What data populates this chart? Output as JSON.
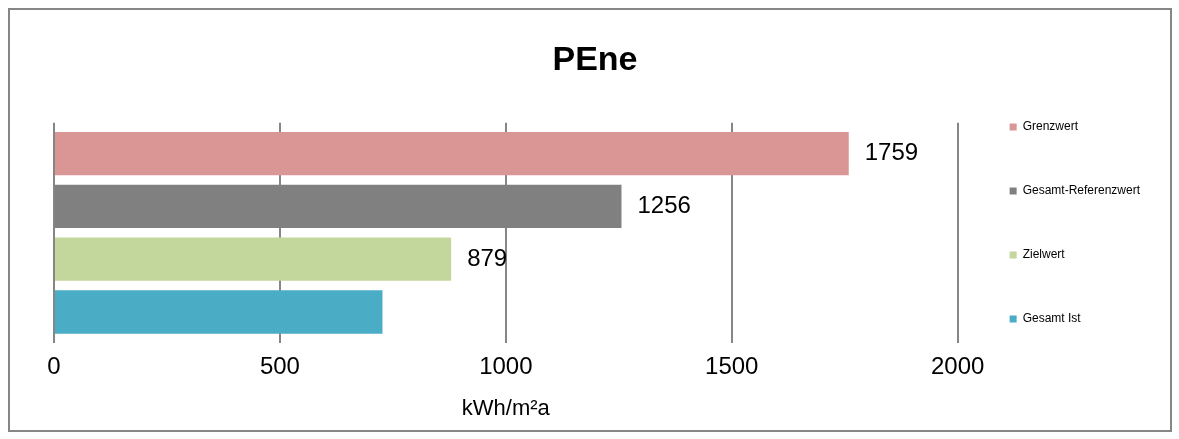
{
  "chart_data": {
    "type": "bar",
    "orientation": "horizontal",
    "title": "PEne",
    "xlabel": "kWh/m²a",
    "categories": [
      null
    ],
    "series": [
      {
        "name": "Grenzwert",
        "color": "#d99694",
        "values": [
          1759
        ],
        "value_labels": [
          "1759"
        ]
      },
      {
        "name": "Gesamt-Referenzwert",
        "color": "#808080",
        "values": [
          1256
        ],
        "value_labels": [
          "1256"
        ]
      },
      {
        "name": "Zielwert",
        "color": "#c3d69b",
        "values": [
          879
        ],
        "value_labels": [
          "879"
        ]
      },
      {
        "name": "Gesamt Ist",
        "color": "#4bacc6",
        "values": [
          727
        ],
        "value_labels": [
          null
        ]
      }
    ],
    "xlim": [
      0,
      2000
    ],
    "xticks": [
      0,
      500,
      1000,
      1500,
      2000
    ],
    "grid": "x",
    "legend": "right"
  }
}
